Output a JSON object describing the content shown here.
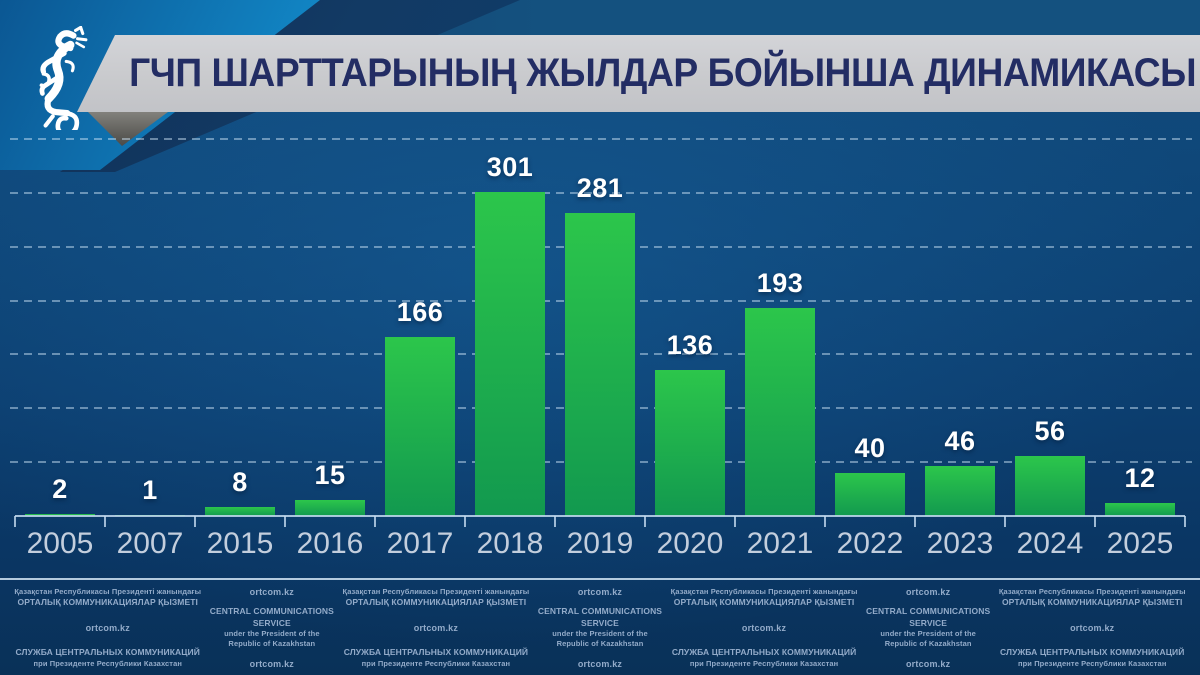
{
  "header": {
    "title": "ГЧП ШАРТТАРЫНЫҢ ЖЫЛДАР БОЙЫНША ДИНАМИКАСЫ",
    "logo": "snow-leopard-emblem"
  },
  "chart_data": {
    "type": "bar",
    "title": "ГЧП ШАРТТАРЫНЫҢ ЖЫЛДАР БОЙЫНША ДИНАМИКАСЫ",
    "categories": [
      "2005",
      "2007",
      "2015",
      "2016",
      "2017",
      "2018",
      "2019",
      "2020",
      "2021",
      "2022",
      "2023",
      "2024",
      "2025"
    ],
    "values": [
      2,
      1,
      8,
      15,
      166,
      301,
      281,
      136,
      193,
      40,
      46,
      56,
      12
    ],
    "xlabel": "",
    "ylabel": "",
    "ylim": [
      0,
      350
    ],
    "ygrid_interval": 50,
    "grid": "horizontal-dashed",
    "legend": "none",
    "value_labels": true,
    "bar_color_top": "#2cc64b",
    "bar_color_bottom": "#12994f"
  },
  "footer": {
    "site": "ortcom.kz",
    "org_kk": [
      "Қазақстан Республикасы Президенті жанындағы",
      "ОРТАЛЫҚ КОММУНИКАЦИЯЛАР ҚЫЗМЕТІ"
    ],
    "org_en": [
      "CENTRAL COMMUNICATIONS SERVICE",
      "under the President of the",
      "Republic of Kazakhstan"
    ],
    "org_ru": [
      "СЛУЖБА ЦЕНТРАЛЬНЫХ КОММУНИКАЦИЙ",
      "при Президенте Республики Казахстан"
    ]
  },
  "colors": {
    "background_navy": "#0d4373",
    "header_band": "#14517f",
    "accent_blue": "#1a93d0",
    "banner_gray": "#c9cacd",
    "title_navy": "#232d64",
    "bar_green_top": "#2cc64b",
    "bar_green_bottom": "#12994f",
    "value_label": "#ffffff",
    "axis_label": "#c3cedd",
    "footer_text": "#93abc9"
  }
}
